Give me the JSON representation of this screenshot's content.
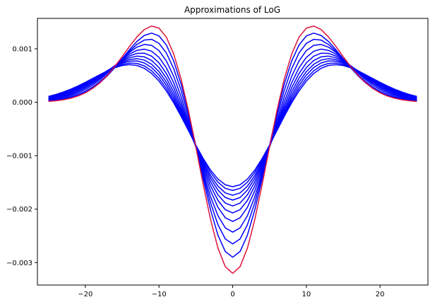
{
  "chart_data": {
    "type": "line",
    "title": "Approximations of LoG",
    "xlabel": "",
    "ylabel": "",
    "xlim": [
      -26.5,
      26.5
    ],
    "ylim": [
      -0.00342,
      0.00157
    ],
    "xticks": [
      -20,
      -10,
      0,
      10,
      20
    ],
    "xtick_labels": [
      "−20",
      "−10",
      "0",
      "10",
      "20"
    ],
    "yticks": [
      -0.003,
      -0.002,
      -0.001,
      0.0,
      0.001
    ],
    "ytick_labels": [
      "−0.003",
      "−0.002",
      "−0.001",
      "0.000",
      "0.001"
    ],
    "x": [
      -25,
      -24,
      -23,
      -22,
      -21,
      -20,
      -19,
      -18,
      -17,
      -16,
      -15,
      -14,
      -13,
      -12,
      -11,
      -10,
      -9,
      -8,
      -7,
      -6,
      -5,
      -4,
      -3,
      -2,
      -1,
      0,
      1,
      2,
      3,
      4,
      5,
      6,
      7,
      8,
      9,
      10,
      11,
      12,
      13,
      14,
      15,
      16,
      17,
      18,
      19,
      20,
      21,
      22,
      23,
      24,
      25
    ],
    "grid": false,
    "series": [
      {
        "color": "#0000ff",
        "sigma": 8.05,
        "min_value": -0.00158
      },
      {
        "color": "#0000ff",
        "sigma": 7.89,
        "min_value": -0.00165
      },
      {
        "color": "#0000ff",
        "sigma": 7.72,
        "min_value": -0.00174
      },
      {
        "color": "#0000ff",
        "sigma": 7.55,
        "min_value": -0.00183
      },
      {
        "color": "#0000ff",
        "sigma": 7.37,
        "min_value": -0.00194
      },
      {
        "color": "#0000ff",
        "sigma": 7.18,
        "min_value": -0.00207
      },
      {
        "color": "#0000ff",
        "sigma": 6.98,
        "min_value": -0.00223
      },
      {
        "color": "#0000ff",
        "sigma": 6.76,
        "min_value": -0.00243
      },
      {
        "color": "#0000ff",
        "sigma": 6.53,
        "min_value": -0.00265
      },
      {
        "color": "#0000ff",
        "sigma": 6.35,
        "min_value": -0.0029
      },
      {
        "color": "#dc143c",
        "sigma": 6.25,
        "min_value": -0.0032
      }
    ]
  }
}
